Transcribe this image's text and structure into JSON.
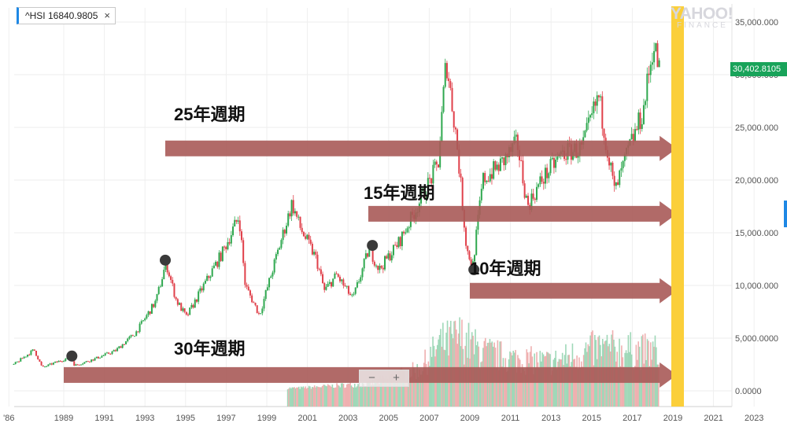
{
  "ticker": {
    "label": "^HSI 16840.9805",
    "close": "×"
  },
  "watermark": {
    "line1": "YAHOO!",
    "line2": "FINANCE"
  },
  "last_price": "30,402.8105",
  "zoom": {
    "minus": "−",
    "plus": "+"
  },
  "annotations": [
    {
      "text": "25年週期",
      "from_year": 1994.0,
      "value": 23000
    },
    {
      "text": "15年週期",
      "from_year": 2004.0,
      "value": 16800
    },
    {
      "text": "10年週期",
      "from_year": 2009.0,
      "value": 9500
    },
    {
      "text": "30年週期",
      "from_year": 1989.0,
      "value": 1500
    }
  ],
  "colors": {
    "up": "#2fa84f",
    "down": "#e0404a",
    "arrow": "#a85a58",
    "highlight": "#fbcf3a",
    "vol_up": "#9fd8b8",
    "vol_down": "#efb0b0"
  },
  "chart_data": {
    "type": "candlestick",
    "title": "^HSI",
    "x_axis": {
      "ticks": [
        "'86",
        "1989",
        "1991",
        "1993",
        "1995",
        "1997",
        "1999",
        "2001",
        "2003",
        "2005",
        "2007",
        "2009",
        "2011",
        "2013",
        "2015",
        "2017",
        "2019",
        "2021",
        "2023"
      ]
    },
    "y_axis": {
      "ticks": [
        "35,000.000",
        "30,000.000",
        "25,000.000",
        "20,000.000",
        "15,000.000",
        "10,000.000",
        "5,000.0000",
        "0.0000"
      ],
      "range": [
        0,
        35000
      ]
    },
    "grid": true,
    "price_series": [
      {
        "x": 1986.5,
        "y": 2500
      },
      {
        "x": 1987.5,
        "y": 3900
      },
      {
        "x": 1987.9,
        "y": 2200
      },
      {
        "x": 1988.5,
        "y": 2650
      },
      {
        "x": 1989.3,
        "y": 3200
      },
      {
        "x": 1989.5,
        "y": 2400
      },
      {
        "x": 1990.5,
        "y": 3050
      },
      {
        "x": 1991.5,
        "y": 3800
      },
      {
        "x": 1992.5,
        "y": 5500
      },
      {
        "x": 1993.5,
        "y": 8500
      },
      {
        "x": 1994.0,
        "y": 12200
      },
      {
        "x": 1994.5,
        "y": 8600
      },
      {
        "x": 1995.0,
        "y": 7000
      },
      {
        "x": 1995.8,
        "y": 9800
      },
      {
        "x": 1996.8,
        "y": 13200
      },
      {
        "x": 1997.6,
        "y": 16600
      },
      {
        "x": 1997.9,
        "y": 10000
      },
      {
        "x": 1998.6,
        "y": 7200
      },
      {
        "x": 1999.4,
        "y": 12500
      },
      {
        "x": 2000.2,
        "y": 17800
      },
      {
        "x": 2000.6,
        "y": 15500
      },
      {
        "x": 2001.4,
        "y": 12500
      },
      {
        "x": 2001.8,
        "y": 9500
      },
      {
        "x": 2002.4,
        "y": 11000
      },
      {
        "x": 2003.2,
        "y": 8700
      },
      {
        "x": 2004.0,
        "y": 13500
      },
      {
        "x": 2004.5,
        "y": 11500
      },
      {
        "x": 2005.5,
        "y": 14200
      },
      {
        "x": 2006.5,
        "y": 18000
      },
      {
        "x": 2007.4,
        "y": 21500
      },
      {
        "x": 2007.8,
        "y": 31500
      },
      {
        "x": 2008.3,
        "y": 24000
      },
      {
        "x": 2008.8,
        "y": 13500
      },
      {
        "x": 2009.1,
        "y": 11800
      },
      {
        "x": 2009.6,
        "y": 20000
      },
      {
        "x": 2010.5,
        "y": 21500
      },
      {
        "x": 2011.3,
        "y": 23500
      },
      {
        "x": 2011.8,
        "y": 17500
      },
      {
        "x": 2012.5,
        "y": 20000
      },
      {
        "x": 2013.5,
        "y": 22500
      },
      {
        "x": 2014.5,
        "y": 23000
      },
      {
        "x": 2015.3,
        "y": 28000
      },
      {
        "x": 2016.1,
        "y": 18800
      },
      {
        "x": 2016.8,
        "y": 23000
      },
      {
        "x": 2017.5,
        "y": 26500
      },
      {
        "x": 2018.0,
        "y": 33000
      },
      {
        "x": 2018.3,
        "y": 30400
      }
    ],
    "volume_levels": [
      {
        "x": 2000.5,
        "y": 400
      },
      {
        "x": 2004.0,
        "y": 1000
      },
      {
        "x": 2006.5,
        "y": 3000
      },
      {
        "x": 2007.5,
        "y": 6500
      },
      {
        "x": 2008.5,
        "y": 7500
      },
      {
        "x": 2009.5,
        "y": 5500
      },
      {
        "x": 2011.0,
        "y": 4500
      },
      {
        "x": 2013.0,
        "y": 4000
      },
      {
        "x": 2015.3,
        "y": 6000
      },
      {
        "x": 2017.5,
        "y": 5500
      }
    ],
    "markers": [
      {
        "x": 1989.4,
        "y": 3300
      },
      {
        "x": 1994.0,
        "y": 12400
      },
      {
        "x": 2004.2,
        "y": 13800
      },
      {
        "x": 2009.2,
        "y": 11500
      }
    ],
    "highlight_x": 2019.0
  }
}
